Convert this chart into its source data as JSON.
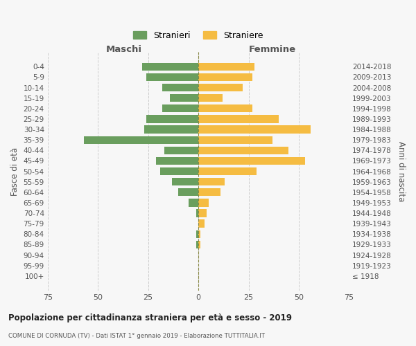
{
  "age_groups": [
    "0-4",
    "5-9",
    "10-14",
    "15-19",
    "20-24",
    "25-29",
    "30-34",
    "35-39",
    "40-44",
    "45-49",
    "50-54",
    "55-59",
    "60-64",
    "65-69",
    "70-74",
    "75-79",
    "80-84",
    "85-89",
    "90-94",
    "95-99",
    "100+"
  ],
  "birth_years": [
    "2014-2018",
    "2009-2013",
    "2004-2008",
    "1999-2003",
    "1994-1998",
    "1989-1993",
    "1984-1988",
    "1979-1983",
    "1974-1978",
    "1969-1973",
    "1964-1968",
    "1959-1963",
    "1954-1958",
    "1949-1953",
    "1944-1948",
    "1939-1943",
    "1934-1938",
    "1929-1933",
    "1924-1928",
    "1919-1923",
    "≤ 1918"
  ],
  "males": [
    28,
    26,
    18,
    14,
    18,
    26,
    27,
    57,
    17,
    21,
    19,
    13,
    10,
    5,
    1,
    0,
    1,
    1,
    0,
    0,
    0
  ],
  "females": [
    28,
    27,
    22,
    12,
    27,
    40,
    56,
    37,
    45,
    53,
    29,
    13,
    11,
    5,
    4,
    3,
    1,
    1,
    0,
    0,
    0
  ],
  "male_color": "#6a9e5e",
  "female_color": "#f5bc42",
  "background_color": "#f7f7f7",
  "grid_color": "#cccccc",
  "title": "Popolazione per cittadinanza straniera per età e sesso - 2019",
  "subtitle": "COMUNE DI CORNUDA (TV) - Dati ISTAT 1° gennaio 2019 - Elaborazione TUTTITALIA.IT",
  "xlabel_left": "Maschi",
  "xlabel_right": "Femmine",
  "ylabel_left": "Fasce di età",
  "ylabel_right": "Anni di nascita",
  "legend_male": "Stranieri",
  "legend_female": "Straniere",
  "xlim": 75
}
